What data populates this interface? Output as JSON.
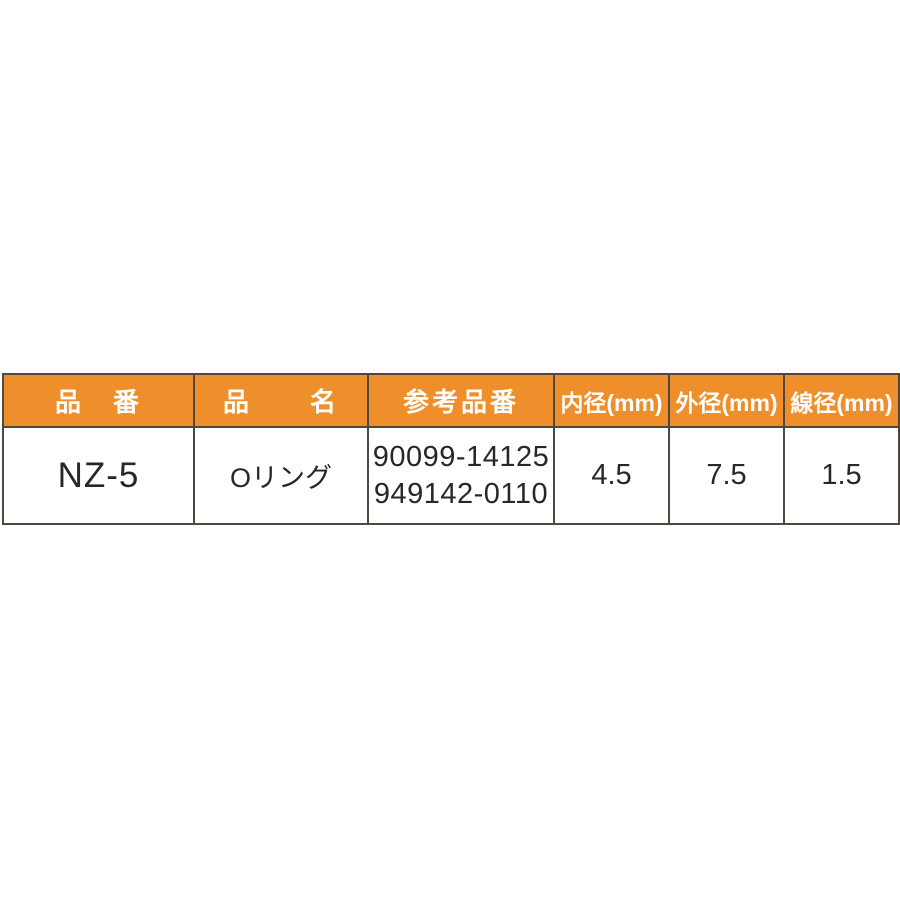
{
  "table": {
    "headers": [
      {
        "key": "part_number",
        "label": "品　番"
      },
      {
        "key": "product_name",
        "label": "品　　名"
      },
      {
        "key": "reference_part_numbers",
        "label": "参考品番"
      },
      {
        "key": "inner_diameter",
        "label": "内径(mm)"
      },
      {
        "key": "outer_diameter",
        "label": "外径(mm)"
      },
      {
        "key": "wire_diameter",
        "label": "線径(mm)"
      }
    ],
    "row": {
      "part_number": "NZ-5",
      "product_name": "Oリング",
      "reference_part_numbers": [
        "90099-14125",
        "949142-0110"
      ],
      "inner_diameter_mm": "4.5",
      "outer_diameter_mm": "7.5",
      "wire_diameter_mm": "1.5"
    },
    "colors": {
      "header_background": "#ef8f2b",
      "header_text": "#ffffff",
      "border": "#4e4840",
      "cell_text": "#272727",
      "page_background": "#ffffff"
    }
  }
}
